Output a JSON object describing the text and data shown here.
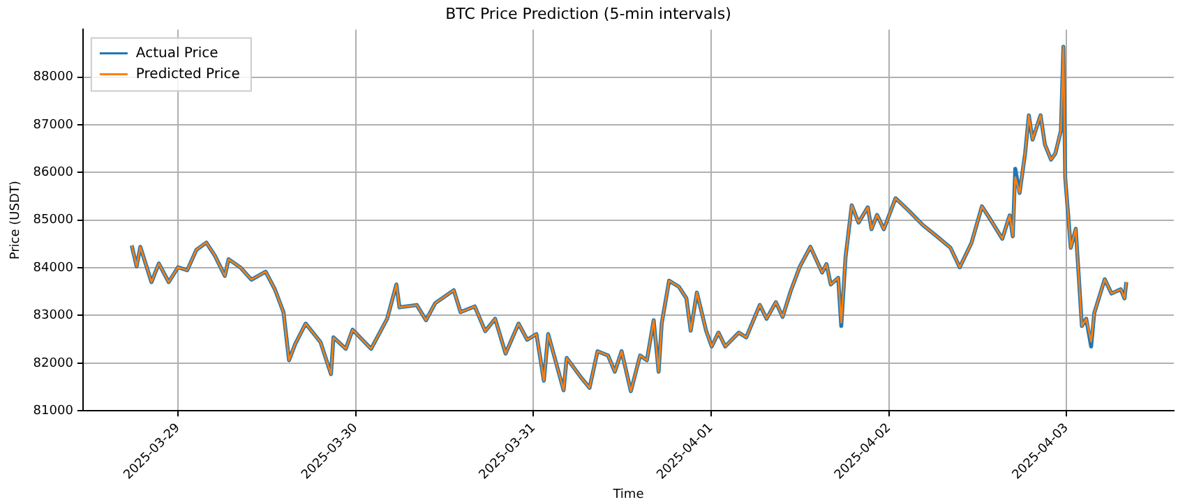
{
  "chart_data": {
    "type": "line",
    "title": "BTC Price Prediction (5-min intervals)",
    "xlabel": "Time",
    "ylabel": "Price (USDT)",
    "x": [
      "2025-03-28T17:45",
      "2025-03-28T18:25",
      "2025-03-28T18:55",
      "2025-03-28T20:25",
      "2025-03-28T21:25",
      "2025-03-28T22:45",
      "2025-03-29T00:00",
      "2025-03-29T01:15",
      "2025-03-29T02:30",
      "2025-03-29T03:50",
      "2025-03-29T05:00",
      "2025-03-29T06:20",
      "2025-03-29T06:50",
      "2025-03-29T08:25",
      "2025-03-29T09:55",
      "2025-03-29T11:50",
      "2025-03-29T13:05",
      "2025-03-29T14:15",
      "2025-03-29T15:00",
      "2025-03-29T15:50",
      "2025-03-29T17:15",
      "2025-03-29T19:15",
      "2025-03-29T20:40",
      "2025-03-29T21:00",
      "2025-03-29T22:40",
      "2025-03-29T23:35",
      "2025-03-30T02:05",
      "2025-03-30T04:15",
      "2025-03-30T05:30",
      "2025-03-30T05:55",
      "2025-03-30T08:15",
      "2025-03-30T09:30",
      "2025-03-30T10:45",
      "2025-03-30T13:15",
      "2025-03-30T14:10",
      "2025-03-30T16:05",
      "2025-03-30T17:30",
      "2025-03-30T18:50",
      "2025-03-30T20:15",
      "2025-03-30T22:00",
      "2025-03-30T23:10",
      "2025-03-31T00:25",
      "2025-03-31T01:25",
      "2025-03-31T02:00",
      "2025-03-31T04:05",
      "2025-03-31T04:30",
      "2025-03-31T06:20",
      "2025-03-31T07:35",
      "2025-03-31T08:40",
      "2025-03-31T10:05",
      "2025-03-31T11:00",
      "2025-03-31T11:55",
      "2025-03-31T13:10",
      "2025-03-31T14:25",
      "2025-03-31T15:20",
      "2025-03-31T16:15",
      "2025-03-31T16:55",
      "2025-03-31T17:20",
      "2025-03-31T18:20",
      "2025-03-31T19:40",
      "2025-03-31T20:40",
      "2025-03-31T21:15",
      "2025-03-31T22:05",
      "2025-03-31T23:20",
      "2025-04-01T00:05",
      "2025-04-01T01:00",
      "2025-04-01T01:55",
      "2025-04-01T03:45",
      "2025-04-01T04:45",
      "2025-04-01T06:35",
      "2025-04-01T07:30",
      "2025-04-01T08:45",
      "2025-04-01T09:40",
      "2025-04-01T10:45",
      "2025-04-01T12:00",
      "2025-04-01T13:25",
      "2025-04-01T15:00",
      "2025-04-01T15:35",
      "2025-04-01T16:10",
      "2025-04-01T17:10",
      "2025-04-01T17:35",
      "2025-04-01T18:10",
      "2025-04-01T19:00",
      "2025-04-01T19:55",
      "2025-04-01T21:10",
      "2025-04-01T21:40",
      "2025-04-01T22:25",
      "2025-04-01T23:20",
      "2025-04-02T00:55",
      "2025-04-02T02:45",
      "2025-04-02T04:35",
      "2025-04-02T06:30",
      "2025-04-02T08:20",
      "2025-04-02T09:35",
      "2025-04-02T11:10",
      "2025-04-02T12:35",
      "2025-04-02T13:35",
      "2025-04-02T15:20",
      "2025-04-02T16:20",
      "2025-04-02T16:45",
      "2025-04-02T17:05",
      "2025-04-02T17:40",
      "2025-04-02T18:25",
      "2025-04-02T18:55",
      "2025-04-02T19:25",
      "2025-04-02T20:30",
      "2025-04-02T21:05",
      "2025-04-02T21:55",
      "2025-04-02T22:30",
      "2025-04-02T23:15",
      "2025-04-02T23:35",
      "2025-04-02T23:50",
      "2025-04-03T00:35",
      "2025-04-03T01:15",
      "2025-04-03T02:05",
      "2025-04-03T02:40",
      "2025-04-03T03:20",
      "2025-04-03T03:45",
      "2025-04-03T05:10",
      "2025-04-03T06:05",
      "2025-04-03T07:20",
      "2025-04-03T07:50",
      "2025-04-03T08:05"
    ],
    "series": [
      {
        "name": "Actual Price",
        "color": "#1f77b4",
        "values": [
          84470,
          84030,
          84440,
          83700,
          84090,
          83700,
          84010,
          83950,
          84380,
          84530,
          84250,
          83830,
          84180,
          84010,
          83750,
          83920,
          83550,
          83070,
          82060,
          82400,
          82830,
          82440,
          81770,
          82540,
          82300,
          82700,
          82300,
          82930,
          83650,
          83170,
          83220,
          82900,
          83260,
          83530,
          83070,
          83190,
          82670,
          82930,
          82200,
          82830,
          82490,
          82610,
          81630,
          82610,
          81430,
          82110,
          81720,
          81480,
          82250,
          82160,
          81820,
          82250,
          81410,
          82160,
          82060,
          82900,
          81820,
          82830,
          83730,
          83600,
          83360,
          82680,
          83480,
          82680,
          82350,
          82640,
          82350,
          82640,
          82540,
          83220,
          82930,
          83280,
          82970,
          83510,
          84030,
          84440,
          83900,
          84080,
          83650,
          83790,
          82780,
          84230,
          85310,
          84950,
          85270,
          84810,
          85110,
          84810,
          85460,
          85190,
          84900,
          84660,
          84420,
          84010,
          84520,
          85290,
          85050,
          84610,
          85100,
          84660,
          86080,
          85570,
          86400,
          87200,
          86690,
          87200,
          86590,
          86270,
          86400,
          86880,
          88640,
          85880,
          84420,
          84820,
          82780,
          82930,
          82350,
          83050,
          83760,
          83460,
          83550,
          83360,
          83700
        ]
      },
      {
        "name": "Predicted Price",
        "color": "#ff7f0e",
        "values": [
          84470,
          84030,
          84440,
          83700,
          84090,
          83700,
          84010,
          83950,
          84380,
          84530,
          84250,
          83830,
          84180,
          84010,
          83750,
          83920,
          83550,
          83070,
          82060,
          82400,
          82830,
          82440,
          81770,
          82540,
          82300,
          82700,
          82300,
          82930,
          83650,
          83170,
          83220,
          82900,
          83260,
          83530,
          83070,
          83190,
          82670,
          82930,
          82200,
          82830,
          82490,
          82610,
          81630,
          82610,
          81430,
          82110,
          81720,
          81480,
          82250,
          82160,
          81820,
          82250,
          81410,
          82160,
          82060,
          82900,
          81820,
          82830,
          83730,
          83600,
          83360,
          82680,
          83480,
          82680,
          82350,
          82640,
          82350,
          82640,
          82540,
          83220,
          82930,
          83280,
          82970,
          83510,
          84030,
          84440,
          83900,
          84080,
          83650,
          83790,
          82850,
          84230,
          85310,
          84950,
          85270,
          84810,
          85110,
          84810,
          85460,
          85190,
          84900,
          84660,
          84420,
          84010,
          84520,
          85290,
          85050,
          84610,
          85100,
          84660,
          85900,
          85570,
          86400,
          87200,
          86690,
          87200,
          86590,
          86270,
          86400,
          86880,
          88640,
          85880,
          84420,
          84820,
          82780,
          82930,
          82450,
          83050,
          83760,
          83460,
          83550,
          83360,
          83700
        ]
      }
    ],
    "xlim": [
      "2025-03-28T11:10",
      "2025-04-03T14:30"
    ],
    "xticks": [
      "2025-03-29",
      "2025-03-30",
      "2025-03-31",
      "2025-04-01",
      "2025-04-02",
      "2025-04-03"
    ],
    "ylim": [
      81000,
      89000
    ],
    "yticks": [
      81000,
      82000,
      83000,
      84000,
      85000,
      86000,
      87000,
      88000
    ],
    "grid": true,
    "legend": "top left"
  }
}
